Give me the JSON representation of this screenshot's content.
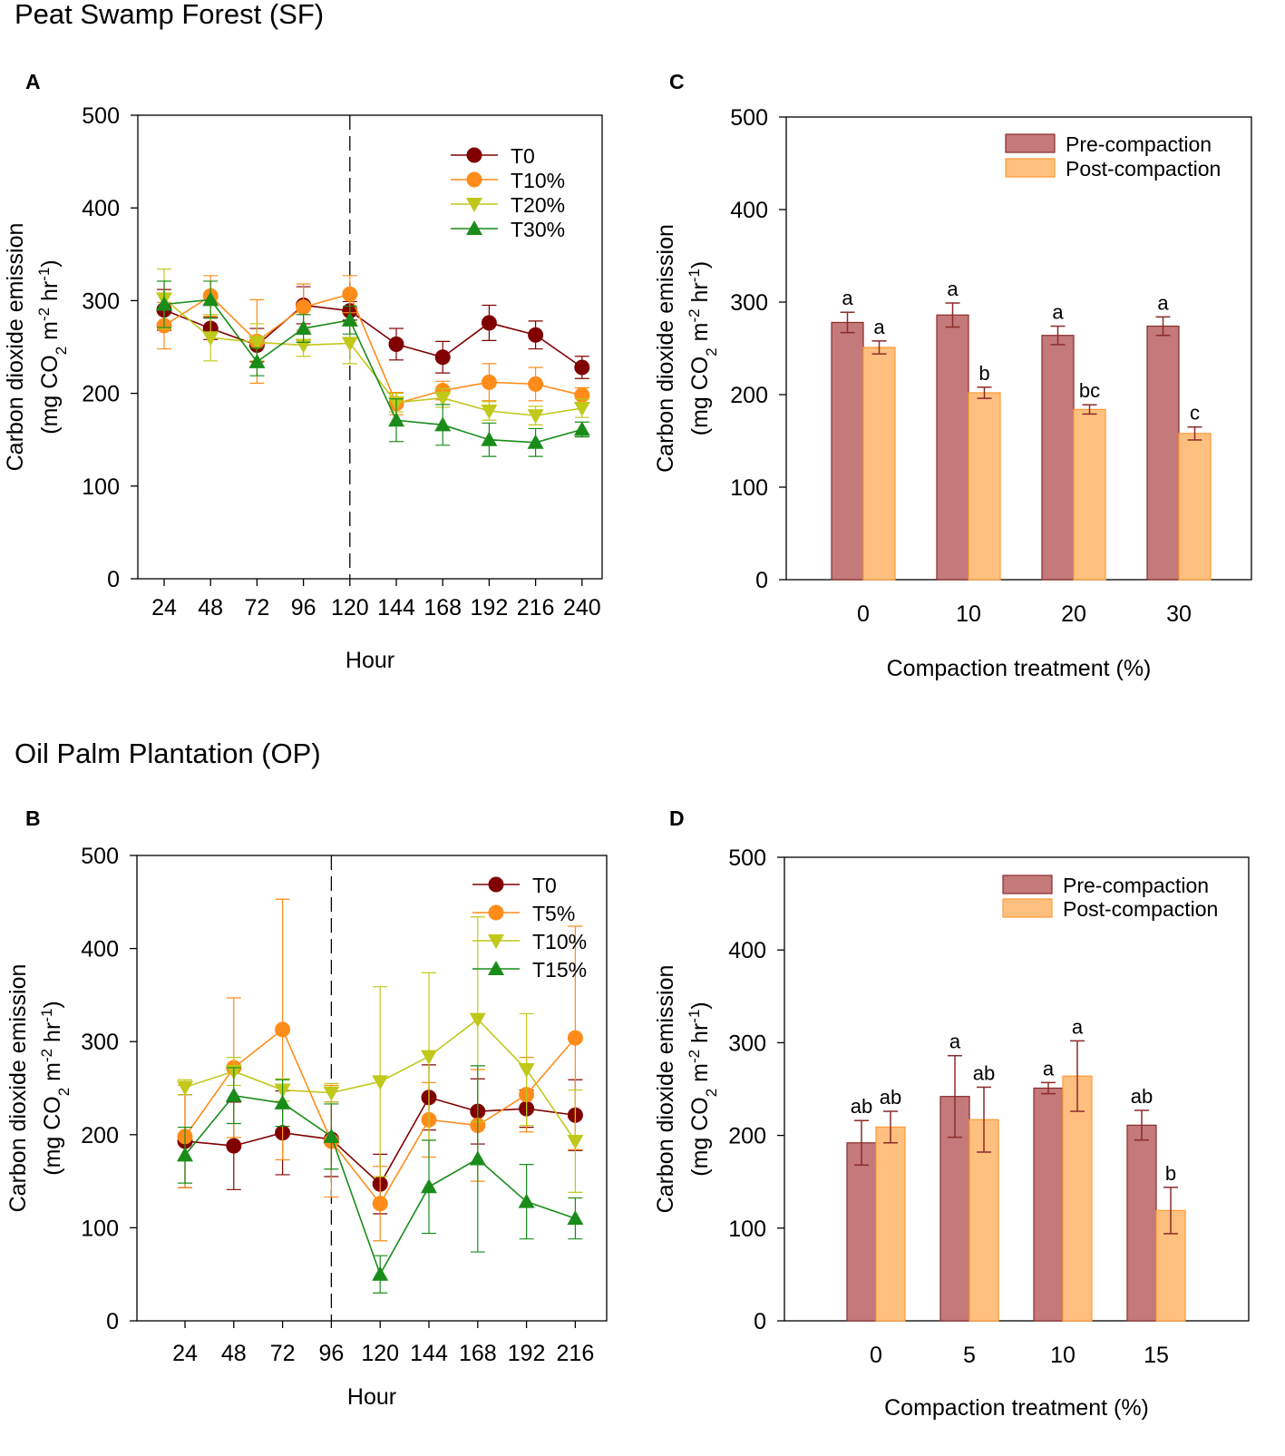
{
  "sections": {
    "top_title": "Peat Swamp Forest (SF)",
    "bottom_title": "Oil Palm Plantation (OP)"
  },
  "colors": {
    "T0": "#800000",
    "Tb": "#ff8c1a",
    "Tc": "#c0c81a",
    "Td": "#1a8c1a",
    "pre_fill": "#c47a7a",
    "pre_stroke": "#8b2a2a",
    "post_fill": "#ffc07f",
    "post_stroke": "#ff9a33"
  },
  "chart_data": [
    {
      "panel": "A",
      "type": "line",
      "xlabel": "Hour",
      "ylabel_line1": "Carbon dioxide emission",
      "ylabel_line2": "(mg CO2 m-2 hr-1)",
      "ylim": [
        0,
        500
      ],
      "yticks": [
        "0",
        "100",
        "200",
        "300",
        "400",
        "500"
      ],
      "x": [
        "24",
        "48",
        "72",
        "96",
        "120",
        "144",
        "168",
        "192",
        "216",
        "240"
      ],
      "divider_after_index": 4,
      "series": [
        {
          "name": "T0",
          "marker": "circle",
          "values": [
            290,
            270,
            252,
            295,
            289,
            253,
            239,
            276,
            263,
            228
          ],
          "errors": [
            22,
            12,
            18,
            20,
            10,
            17,
            17,
            19,
            15,
            12
          ]
        },
        {
          "name": "T10%",
          "marker": "circle",
          "values": [
            273,
            305,
            256,
            293,
            307,
            189,
            203,
            212,
            210,
            198
          ],
          "errors": [
            25,
            22,
            45,
            25,
            20,
            12,
            10,
            20,
            18,
            8
          ]
        },
        {
          "name": "T20%",
          "marker": "triangle-down",
          "values": [
            302,
            260,
            255,
            252,
            254,
            190,
            195,
            181,
            176,
            184
          ],
          "errors": [
            32,
            25,
            20,
            12,
            22,
            10,
            10,
            10,
            10,
            10
          ]
        },
        {
          "name": "T30%",
          "marker": "triangle-up",
          "values": [
            296,
            301,
            234,
            270,
            279,
            171,
            166,
            150,
            147,
            161
          ],
          "errors": [
            25,
            20,
            15,
            15,
            15,
            23,
            22,
            18,
            15,
            8
          ]
        }
      ]
    },
    {
      "panel": "C",
      "type": "bar",
      "xlabel": "Compaction treatment (%)",
      "ylabel_line1": "Carbon dioxide emission",
      "ylabel_line2": "(mg CO2 m-2 hr-1)",
      "ylim": [
        0,
        500
      ],
      "yticks": [
        "0",
        "100",
        "200",
        "300",
        "400",
        "500"
      ],
      "categories": [
        "0",
        "10",
        "20",
        "30"
      ],
      "series": [
        {
          "name": "Pre-compaction",
          "values": [
            278,
            286,
            264,
            274
          ],
          "errors": [
            11,
            13,
            10,
            10
          ],
          "labels": [
            "a",
            "a",
            "a",
            "a"
          ]
        },
        {
          "name": "Post-compaction",
          "values": [
            251,
            202,
            184,
            158
          ],
          "errors": [
            7,
            6,
            5,
            7
          ],
          "labels": [
            "a",
            "b",
            "bc",
            "c"
          ]
        }
      ]
    },
    {
      "panel": "B",
      "type": "line",
      "xlabel": "Hour",
      "ylabel_line1": "Carbon dioxide emission",
      "ylabel_line2": "(mg CO2 m-2 hr-1)",
      "ylim": [
        0,
        500
      ],
      "yticks": [
        "0",
        "100",
        "200",
        "300",
        "400",
        "500"
      ],
      "x": [
        "24",
        "48",
        "72",
        "96",
        "120",
        "144",
        "168",
        "192",
        "216"
      ],
      "divider_after_index": 3,
      "series": [
        {
          "name": "T0",
          "marker": "circle",
          "values": [
            193,
            188,
            202,
            195,
            147,
            240,
            225,
            228,
            221
          ],
          "errors": [
            50,
            47,
            45,
            40,
            32,
            35,
            35,
            20,
            38
          ]
        },
        {
          "name": "T5%",
          "marker": "circle",
          "values": [
            198,
            272,
            313,
            193,
            126,
            216,
            210,
            243,
            304
          ],
          "errors": [
            55,
            75,
            140,
            60,
            40,
            40,
            60,
            40,
            120
          ]
        },
        {
          "name": "T10%",
          "marker": "triangle-down",
          "values": [
            251,
            268,
            248,
            245,
            257,
            284,
            324,
            270,
            193
          ],
          "errors": [
            8,
            15,
            12,
            10,
            102,
            90,
            110,
            60,
            55
          ]
        },
        {
          "name": "T15%",
          "marker": "triangle-up",
          "values": [
            178,
            242,
            234,
            198,
            50,
            144,
            174,
            128,
            110
          ],
          "errors": [
            30,
            30,
            25,
            35,
            20,
            50,
            100,
            40,
            22
          ]
        }
      ]
    },
    {
      "panel": "D",
      "type": "bar",
      "xlabel": "Compaction treatment (%)",
      "ylabel_line1": "Carbon dioxide emission",
      "ylabel_line2": "(mg CO2 m-2 hr-1)",
      "ylim": [
        0,
        500
      ],
      "yticks": [
        "0",
        "100",
        "200",
        "300",
        "400",
        "500"
      ],
      "categories": [
        "0",
        "5",
        "10",
        "15"
      ],
      "series": [
        {
          "name": "Pre-compaction",
          "values": [
            192,
            242,
            251,
            211
          ],
          "errors": [
            24,
            44,
            6,
            16
          ],
          "labels": [
            "ab",
            "a",
            "a",
            "ab"
          ]
        },
        {
          "name": "Post-compaction",
          "values": [
            209,
            217,
            264,
            119
          ],
          "errors": [
            17,
            35,
            38,
            25
          ],
          "labels": [
            "ab",
            "ab",
            "a",
            "b"
          ]
        }
      ]
    }
  ]
}
